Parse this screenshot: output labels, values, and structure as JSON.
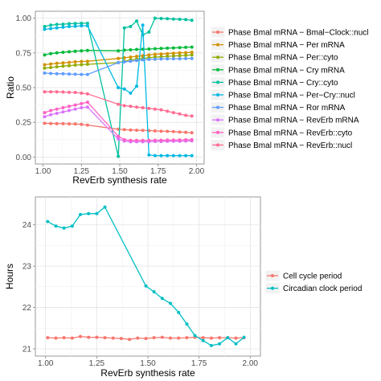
{
  "chart_data": [
    {
      "type": "line",
      "title": "",
      "xlabel": "RevErb synthesis rate",
      "ylabel": "Ratio",
      "xlim": [
        1.0,
        2.0
      ],
      "ylim": [
        0.0,
        1.0
      ],
      "xticks": [
        "1.00",
        "1.25",
        "1.50",
        "1.75",
        "2.00"
      ],
      "yticks": [
        "0.00",
        "0.25",
        "0.50",
        "0.75",
        "1.00"
      ],
      "grid": true,
      "legend_position": "right",
      "series": [
        {
          "name": "Phase Bmal mRNA − Bmal−Clock::nucl",
          "color": "#F8766D",
          "x": [
            1.01,
            1.05,
            1.09,
            1.13,
            1.17,
            1.21,
            1.25,
            1.29,
            1.49,
            1.53,
            1.57,
            1.61,
            1.65,
            1.69,
            1.73,
            1.77,
            1.81,
            1.85,
            1.89,
            1.93,
            1.97
          ],
          "y": [
            0.243,
            0.241,
            0.24,
            0.24,
            0.239,
            0.238,
            0.235,
            0.23,
            0.2,
            0.197,
            0.195,
            0.193,
            0.192,
            0.19,
            0.188,
            0.186,
            0.185,
            0.183,
            0.18,
            0.178,
            0.175
          ]
        },
        {
          "name": "Phase Bmal mRNA − Per mRNA",
          "color": "#D39200",
          "x": [
            1.01,
            1.05,
            1.09,
            1.13,
            1.17,
            1.21,
            1.25,
            1.29,
            1.49,
            1.53,
            1.57,
            1.61,
            1.65,
            1.69,
            1.73,
            1.77,
            1.81,
            1.85,
            1.89,
            1.93,
            1.97
          ],
          "y": [
            0.665,
            0.67,
            0.675,
            0.678,
            0.682,
            0.686,
            0.688,
            0.69,
            0.71,
            0.715,
            0.72,
            0.725,
            0.73,
            0.735,
            0.74,
            0.742,
            0.745,
            0.748,
            0.75,
            0.752,
            0.755
          ]
        },
        {
          "name": "Phase Bmal mRNA − Per::cyto",
          "color": "#93AA00",
          "x": [
            1.01,
            1.05,
            1.09,
            1.13,
            1.17,
            1.21,
            1.25,
            1.29,
            1.49,
            1.53,
            1.57,
            1.61,
            1.65,
            1.69,
            1.73,
            1.77,
            1.81,
            1.85,
            1.89,
            1.93,
            1.97
          ],
          "y": [
            0.64,
            0.645,
            0.65,
            0.655,
            0.658,
            0.662,
            0.665,
            0.668,
            0.68,
            0.69,
            0.7,
            0.705,
            0.71,
            0.715,
            0.72,
            0.722,
            0.725,
            0.728,
            0.73,
            0.732,
            0.735
          ]
        },
        {
          "name": "Phase Bmal mRNA − Cry mRNA",
          "color": "#00BA38",
          "x": [
            1.01,
            1.05,
            1.09,
            1.13,
            1.17,
            1.21,
            1.25,
            1.29,
            1.49,
            1.53,
            1.57,
            1.61,
            1.65,
            1.69,
            1.73,
            1.77,
            1.81,
            1.85,
            1.89,
            1.93,
            1.97
          ],
          "y": [
            0.735,
            0.745,
            0.75,
            0.755,
            0.758,
            0.762,
            0.765,
            0.768,
            0.765,
            0.77,
            0.772,
            0.775,
            0.776,
            0.778,
            0.78,
            0.782,
            0.784,
            0.786,
            0.788,
            0.79,
            0.792
          ]
        },
        {
          "name": "Phase Bmal mRNA − Cry::cyto",
          "color": "#00C19F",
          "x": [
            1.01,
            1.05,
            1.09,
            1.13,
            1.17,
            1.21,
            1.25,
            1.29,
            1.49,
            1.53,
            1.57,
            1.61,
            1.65,
            1.69,
            1.73,
            1.77,
            1.81,
            1.85,
            1.89,
            1.93,
            1.97
          ],
          "y": [
            0.94,
            0.95,
            0.955,
            0.957,
            0.96,
            0.962,
            0.963,
            0.963,
            0.005,
            0.93,
            0.94,
            0.98,
            0.88,
            0.9,
            1.0,
            0.998,
            0.996,
            0.994,
            0.992,
            0.99,
            0.985
          ]
        },
        {
          "name": "Phase Bmal mRNA − Per−Cry::nucl",
          "color": "#00B9E3",
          "x": [
            1.01,
            1.05,
            1.09,
            1.13,
            1.17,
            1.21,
            1.25,
            1.29,
            1.49,
            1.53,
            1.57,
            1.61,
            1.65,
            1.69,
            1.73,
            1.77,
            1.81,
            1.85,
            1.89,
            1.93,
            1.97
          ],
          "y": [
            0.92,
            0.925,
            0.93,
            0.935,
            0.94,
            0.942,
            0.945,
            0.945,
            0.5,
            0.49,
            0.46,
            0.51,
            0.95,
            0.015,
            0.01,
            0.01,
            0.01,
            0.01,
            0.01,
            0.01,
            0.01
          ]
        },
        {
          "name": "Phase Bmal mRNA − Ror mRNA",
          "color": "#619CFF",
          "x": [
            1.01,
            1.05,
            1.09,
            1.13,
            1.17,
            1.21,
            1.25,
            1.29,
            1.49,
            1.53,
            1.57,
            1.61,
            1.65,
            1.69,
            1.73,
            1.77,
            1.81,
            1.85,
            1.89,
            1.93,
            1.97
          ],
          "y": [
            0.605,
            0.602,
            0.6,
            0.6,
            0.598,
            0.596,
            0.595,
            0.595,
            0.68,
            0.685,
            0.69,
            0.695,
            0.7,
            0.703,
            0.705,
            0.706,
            0.707,
            0.708,
            0.708,
            0.709,
            0.71
          ]
        },
        {
          "name": "Phase Bmal mRNA − RevErb mRNA",
          "color": "#DB72FB",
          "x": [
            1.01,
            1.05,
            1.09,
            1.13,
            1.17,
            1.21,
            1.25,
            1.29,
            1.49,
            1.53,
            1.57,
            1.61,
            1.65,
            1.69,
            1.73,
            1.77,
            1.81,
            1.85,
            1.89,
            1.93,
            1.97
          ],
          "y": [
            0.29,
            0.305,
            0.315,
            0.325,
            0.335,
            0.345,
            0.355,
            0.36,
            0.13,
            0.115,
            0.11,
            0.11,
            0.11,
            0.11,
            0.112,
            0.112,
            0.113,
            0.113,
            0.114,
            0.115,
            0.116
          ]
        },
        {
          "name": "Phase Bmal mRNA − RevErb::cyto",
          "color": "#FF61C3",
          "x": [
            1.01,
            1.05,
            1.09,
            1.13,
            1.17,
            1.21,
            1.25,
            1.29,
            1.49,
            1.53,
            1.57,
            1.61,
            1.65,
            1.69,
            1.73,
            1.77,
            1.81,
            1.85,
            1.89,
            1.93,
            1.97
          ],
          "y": [
            0.32,
            0.335,
            0.345,
            0.355,
            0.365,
            0.375,
            0.385,
            0.395,
            0.15,
            0.125,
            0.12,
            0.12,
            0.12,
            0.12,
            0.121,
            0.121,
            0.122,
            0.122,
            0.123,
            0.124,
            0.125
          ]
        },
        {
          "name": "Phase Bmal mRNA − RevErb::nucl",
          "color": "#FF6C91",
          "x": [
            1.01,
            1.05,
            1.09,
            1.13,
            1.17,
            1.21,
            1.25,
            1.29,
            1.49,
            1.53,
            1.57,
            1.61,
            1.65,
            1.69,
            1.73,
            1.77,
            1.81,
            1.85,
            1.89,
            1.93,
            1.97
          ],
          "y": [
            0.47,
            0.47,
            0.47,
            0.468,
            0.466,
            0.465,
            0.46,
            0.455,
            0.38,
            0.37,
            0.365,
            0.36,
            0.355,
            0.35,
            0.345,
            0.34,
            0.33,
            0.32,
            0.31,
            0.3,
            0.295
          ]
        }
      ]
    },
    {
      "type": "line",
      "title": "",
      "xlabel": "RevErb synthesis rate",
      "ylabel": "Hours",
      "xlim": [
        1.0,
        2.0
      ],
      "ylim": [
        21.0,
        24.5
      ],
      "xticks": [
        "1.00",
        "1.25",
        "1.50",
        "1.75",
        "2.00"
      ],
      "yticks": [
        "21",
        "22",
        "23",
        "24"
      ],
      "grid": true,
      "legend_position": "right",
      "series": [
        {
          "name": "Cell cycle period",
          "color": "#F8766D",
          "x": [
            1.01,
            1.05,
            1.09,
            1.13,
            1.17,
            1.21,
            1.25,
            1.29,
            1.33,
            1.37,
            1.41,
            1.45,
            1.49,
            1.53,
            1.57,
            1.61,
            1.65,
            1.69,
            1.73,
            1.77,
            1.81,
            1.85,
            1.89,
            1.93,
            1.97
          ],
          "y": [
            21.27,
            21.26,
            21.27,
            21.26,
            21.3,
            21.28,
            21.28,
            21.27,
            21.26,
            21.25,
            21.23,
            21.26,
            21.25,
            21.27,
            21.28,
            21.26,
            21.26,
            21.27,
            21.28,
            21.27,
            21.26,
            21.27,
            21.27,
            21.26,
            21.27
          ]
        },
        {
          "name": "Circadian clock period",
          "color": "#00BFC4",
          "x": [
            1.01,
            1.05,
            1.09,
            1.13,
            1.17,
            1.21,
            1.25,
            1.29,
            1.49,
            1.53,
            1.57,
            1.61,
            1.65,
            1.69,
            1.73,
            1.77,
            1.81,
            1.85,
            1.89,
            1.93,
            1.97
          ],
          "y": [
            24.08,
            23.97,
            23.92,
            23.97,
            24.25,
            24.27,
            24.27,
            24.43,
            22.52,
            22.38,
            22.22,
            22.1,
            21.88,
            21.6,
            21.32,
            21.2,
            21.08,
            21.12,
            21.27,
            21.12,
            21.28
          ]
        }
      ]
    }
  ]
}
